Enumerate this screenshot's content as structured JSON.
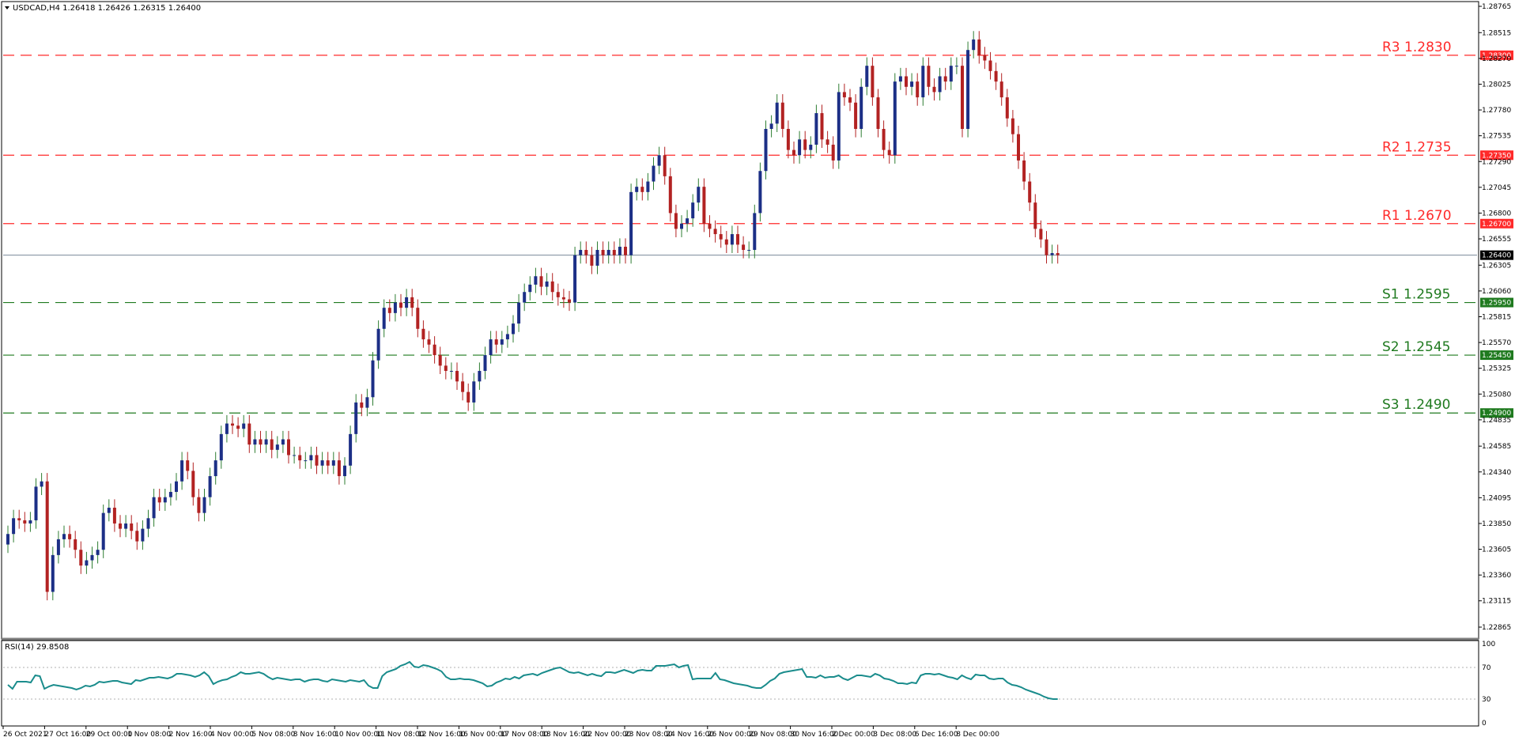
{
  "title": "USDCAD,H4  1.26418 1.26426 1.26315 1.26400",
  "colors": {
    "bull": "#1c2f86",
    "bear": "#b22222",
    "wick_bull": "#2e7d32",
    "wick_bear": "#b22222",
    "resistance": "#ff2a2a",
    "support": "#1f7a1f",
    "rsi": "#1a8c8c",
    "current": "#000000"
  },
  "chart_data": [
    {
      "type": "candlestick",
      "title": "USDCAD,H4  1.26418 1.26426 1.26315 1.26400",
      "ylim": [
        1.22865,
        1.28765
      ],
      "y_ticks": [
        "1.28765",
        "1.28515",
        "1.28270",
        "1.28025",
        "1.27780",
        "1.27535",
        "1.27290",
        "1.27045",
        "1.26800",
        "1.26555",
        "1.26305",
        "1.26060",
        "1.25815",
        "1.25570",
        "1.25325",
        "1.25080",
        "1.24835",
        "1.24585",
        "1.24340",
        "1.24095",
        "1.23850",
        "1.23605",
        "1.23360",
        "1.23115",
        "1.22865"
      ],
      "x_tick_labels": [
        "26 Oct 2021",
        "27 Oct 16:00",
        "29 Oct 00:00",
        "1 Nov 08:00",
        "2 Nov 16:00",
        "4 Nov 00:00",
        "5 Nov 08:00",
        "8 Nov 16:00",
        "10 Nov 00:00",
        "11 Nov 08:00",
        "12 Nov 16:00",
        "16 Nov 00:00",
        "17 Nov 08:00",
        "18 Nov 16:00",
        "22 Nov 00:00",
        "23 Nov 08:00",
        "24 Nov 16:00",
        "26 Nov 00:00",
        "29 Nov 08:00",
        "30 Nov 16:00",
        "2 Dec 00:00",
        "3 Dec 08:00",
        "6 Dec 16:00",
        "8 Dec 00:00"
      ],
      "current_price": "1.26400",
      "levels": [
        {
          "name": "R3 1.2830",
          "value": 1.283,
          "tag": "1.28300",
          "kind": "resistance"
        },
        {
          "name": "R2 1.2735",
          "value": 1.2735,
          "tag": "1.27350",
          "kind": "resistance"
        },
        {
          "name": "R1 1.2670",
          "value": 1.267,
          "tag": "1.26700",
          "kind": "resistance"
        },
        {
          "name": "S1 1.2595",
          "value": 1.2595,
          "tag": "1.25950",
          "kind": "support"
        },
        {
          "name": "S2 1.2545",
          "value": 1.2545,
          "tag": "1.25450",
          "kind": "support"
        },
        {
          "name": "S3 1.2490",
          "value": 1.249,
          "tag": "1.24900",
          "kind": "support"
        }
      ],
      "candle_closes": [
        1.2375,
        1.239,
        1.2388,
        1.2385,
        1.2388,
        1.242,
        1.2425,
        1.232,
        1.2355,
        1.237,
        1.2375,
        1.237,
        1.236,
        1.2345,
        1.235,
        1.2355,
        1.236,
        1.2395,
        1.24,
        1.2385,
        1.238,
        1.2385,
        1.2378,
        1.2368,
        1.238,
        1.239,
        1.241,
        1.2405,
        1.241,
        1.2415,
        1.2425,
        1.2445,
        1.2435,
        1.241,
        1.2395,
        1.241,
        1.243,
        1.2445,
        1.247,
        1.248,
        1.2478,
        1.2475,
        1.248,
        1.246,
        1.2465,
        1.246,
        1.2465,
        1.2455,
        1.246,
        1.2465,
        1.245,
        1.245,
        1.2445,
        1.2445,
        1.245,
        1.244,
        1.2445,
        1.244,
        1.2445,
        1.243,
        1.244,
        1.247,
        1.25,
        1.2495,
        1.2505,
        1.254,
        1.257,
        1.259,
        1.2585,
        1.2595,
        1.259,
        1.26,
        1.259,
        1.257,
        1.256,
        1.2555,
        1.2545,
        1.2535,
        1.253,
        1.253,
        1.252,
        1.251,
        1.25,
        1.252,
        1.253,
        1.2545,
        1.256,
        1.2555,
        1.256,
        1.2565,
        1.2575,
        1.2595,
        1.2605,
        1.2612,
        1.262,
        1.261,
        1.2615,
        1.2605,
        1.26,
        1.2598,
        1.2595,
        1.264,
        1.2645,
        1.264,
        1.263,
        1.2645,
        1.264,
        1.2645,
        1.264,
        1.2648,
        1.264,
        1.27,
        1.2705,
        1.27,
        1.271,
        1.2725,
        1.2735,
        1.2715,
        1.268,
        1.2665,
        1.267,
        1.2675,
        1.269,
        1.2705,
        1.267,
        1.2665,
        1.266,
        1.2655,
        1.265,
        1.266,
        1.265,
        1.2645,
        1.2645,
        1.268,
        1.272,
        1.276,
        1.2765,
        1.2785,
        1.276,
        1.274,
        1.2735,
        1.275,
        1.274,
        1.2745,
        1.2775,
        1.275,
        1.2745,
        1.273,
        1.2795,
        1.279,
        1.2785,
        1.276,
        1.28,
        1.282,
        1.279,
        1.276,
        1.274,
        1.2735,
        1.2805,
        1.281,
        1.28,
        1.2805,
        1.279,
        1.282,
        1.28,
        1.2795,
        1.281,
        1.2805,
        1.282,
        1.282,
        1.276,
        1.2835,
        1.2845,
        1.283,
        1.2825,
        1.2815,
        1.2805,
        1.279,
        1.277,
        1.2755,
        1.273,
        1.271,
        1.269,
        1.2665,
        1.2655,
        1.264,
        1.2642,
        1.264
      ]
    },
    {
      "type": "line",
      "title": "RSI(14) 29.8508",
      "ylim": [
        0,
        100
      ],
      "y_ticks": [
        "100",
        "70",
        "30",
        "0"
      ],
      "values": [
        48,
        43,
        52,
        52,
        52,
        51,
        60,
        59,
        43,
        46,
        48,
        47,
        46,
        45,
        44,
        42,
        44,
        47,
        46,
        48,
        52,
        51,
        52,
        53,
        53,
        51,
        50,
        49,
        54,
        53,
        55,
        57,
        57,
        58,
        57,
        56,
        58,
        62,
        62,
        61,
        60,
        58,
        60,
        64,
        59,
        49,
        52,
        54,
        55,
        58,
        60,
        64,
        62,
        62,
        63,
        64,
        62,
        58,
        55,
        57,
        56,
        55,
        54,
        55,
        55,
        52,
        54,
        55,
        55,
        53,
        52,
        55,
        54,
        53,
        52,
        54,
        53,
        52,
        54,
        47,
        44,
        44,
        59,
        64,
        66,
        68,
        72,
        74,
        77,
        71,
        70,
        73,
        72,
        70,
        68,
        65,
        58,
        55,
        55,
        56,
        55,
        55,
        54,
        52,
        50,
        46,
        47,
        51,
        53,
        56,
        55,
        58,
        56,
        60,
        61,
        62,
        60,
        63,
        65,
        67,
        69,
        70,
        67,
        64,
        63,
        64,
        62,
        60,
        62,
        60,
        59,
        64,
        64,
        63,
        65,
        67,
        65,
        63,
        66,
        67,
        66,
        66,
        72,
        72,
        72,
        73,
        74,
        70,
        72,
        73,
        55,
        56,
        56,
        56,
        56,
        63,
        55,
        54,
        52,
        50,
        49,
        48,
        47,
        45,
        44,
        44,
        48,
        53,
        56,
        62,
        64,
        65,
        66,
        67,
        68,
        58,
        58,
        57,
        60,
        57,
        58,
        58,
        60,
        56,
        54,
        57,
        60,
        60,
        59,
        58,
        62,
        60,
        56,
        55,
        53,
        50,
        50,
        49,
        51,
        50,
        60,
        62,
        62,
        61,
        62,
        60,
        58,
        57,
        55,
        60,
        57,
        55,
        61,
        60,
        60,
        56,
        55,
        56,
        56,
        51,
        48,
        47,
        45,
        42,
        40,
        38,
        36,
        33,
        31,
        30,
        30
      ]
    }
  ],
  "x_labels_rsi_panel": "RSI(14) 29.8508"
}
